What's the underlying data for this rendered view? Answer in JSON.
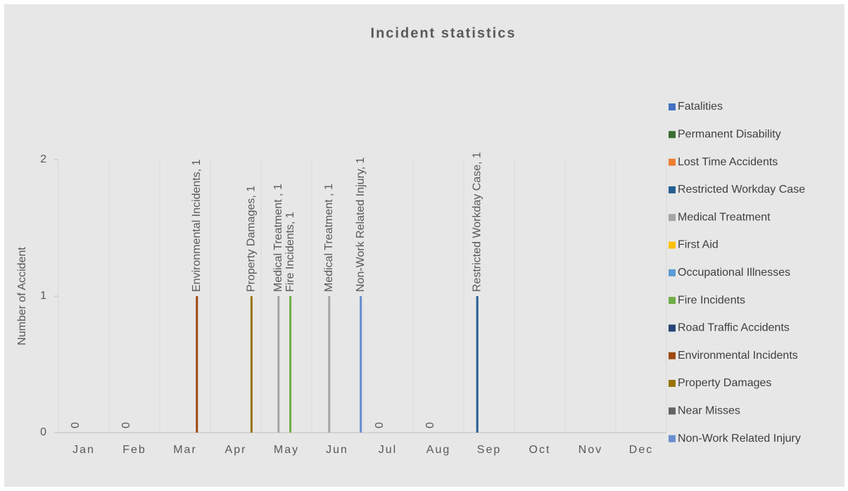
{
  "chart_data": {
    "type": "bar",
    "title": "Incident  statistics",
    "ylabel": "Number of  Accident",
    "categories": [
      "Jan",
      "Feb",
      "Mar",
      "Apr",
      "May",
      "Jun",
      "Jul",
      "Aug",
      "Sep",
      "Oct",
      "Nov",
      "Dec"
    ],
    "ylim": [
      0,
      2
    ],
    "yticks": [
      0,
      1,
      2
    ],
    "grid": "x",
    "legend": "right",
    "series": [
      {
        "name": "Fatalities",
        "color": "#4472c4",
        "values": [
          null,
          null,
          null,
          null,
          null,
          null,
          null,
          null,
          null,
          null,
          null,
          null
        ]
      },
      {
        "name": "Permanent Disability",
        "color": "#3b6e32",
        "values": [
          null,
          null,
          null,
          null,
          null,
          null,
          null,
          null,
          null,
          null,
          null,
          null
        ]
      },
      {
        "name": "Lost Time Accidents",
        "color": "#ed7d31",
        "values": [
          null,
          null,
          null,
          null,
          null,
          null,
          null,
          null,
          null,
          null,
          null,
          null
        ]
      },
      {
        "name": "Restricted Workday Case",
        "color": "#255e91",
        "values": [
          null,
          null,
          null,
          null,
          null,
          null,
          null,
          null,
          1,
          null,
          null,
          null
        ],
        "value_labels": [
          null,
          null,
          null,
          null,
          null,
          null,
          null,
          null,
          "Restricted Workday Case, 1",
          null,
          null,
          null
        ]
      },
      {
        "name": "Medical Treatment",
        "color": "#a5a5a5",
        "values": [
          0,
          0,
          null,
          null,
          1,
          1,
          0,
          0,
          null,
          null,
          null,
          null
        ],
        "value_labels": [
          null,
          null,
          null,
          null,
          "Medical Treatment , 1",
          "Medical Treatment , 1",
          null,
          null,
          null,
          null,
          null,
          null
        ]
      },
      {
        "name": "First Aid",
        "color": "#ffc000",
        "values": [
          null,
          null,
          null,
          null,
          null,
          null,
          null,
          null,
          null,
          null,
          null,
          null
        ]
      },
      {
        "name": "Occupational Illnesses",
        "color": "#5b9bd5",
        "values": [
          null,
          null,
          null,
          null,
          null,
          null,
          null,
          null,
          null,
          null,
          null,
          null
        ]
      },
      {
        "name": "Fire Incidents",
        "color": "#70ad47",
        "values": [
          null,
          null,
          null,
          null,
          1,
          null,
          null,
          null,
          null,
          null,
          null,
          null
        ],
        "value_labels": [
          null,
          null,
          null,
          null,
          "Fire Incidents, 1",
          null,
          null,
          null,
          null,
          null,
          null,
          null
        ]
      },
      {
        "name": "Road Traffic Accidents",
        "color": "#264478",
        "values": [
          null,
          null,
          null,
          null,
          null,
          null,
          null,
          null,
          null,
          null,
          null,
          null
        ]
      },
      {
        "name": "Environmental Incidents",
        "color": "#9e480e",
        "values": [
          null,
          null,
          1,
          null,
          null,
          null,
          null,
          null,
          null,
          null,
          null,
          null
        ],
        "value_labels": [
          null,
          null,
          "Environmental Incidents, 1",
          null,
          null,
          null,
          null,
          null,
          null,
          null,
          null,
          null
        ]
      },
      {
        "name": "Property Damages",
        "color": "#997300",
        "values": [
          null,
          null,
          null,
          1,
          null,
          null,
          null,
          null,
          null,
          null,
          null,
          null
        ],
        "value_labels": [
          null,
          null,
          null,
          "Property Damages, 1",
          null,
          null,
          null,
          null,
          null,
          null,
          null,
          null
        ]
      },
      {
        "name": "Near Misses",
        "color": "#636363",
        "values": [
          null,
          null,
          null,
          null,
          null,
          null,
          null,
          null,
          null,
          null,
          null,
          null
        ]
      },
      {
        "name": "Non-Work Related Injury",
        "color": "#698ed0",
        "values": [
          null,
          null,
          null,
          null,
          null,
          1,
          null,
          null,
          null,
          null,
          null,
          null
        ],
        "value_labels": [
          null,
          null,
          null,
          null,
          null,
          "Non-Work Related Injury, 1",
          null,
          null,
          null,
          null,
          null,
          null
        ]
      }
    ]
  }
}
